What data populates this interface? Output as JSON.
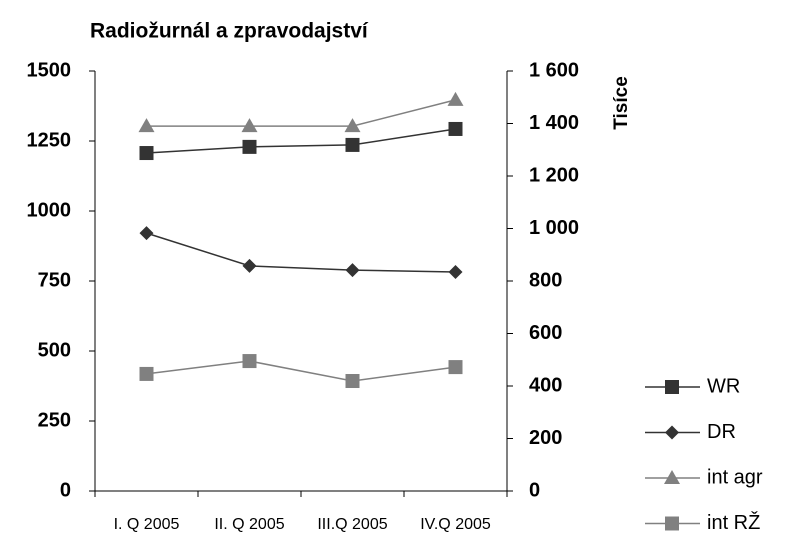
{
  "chart_data": {
    "type": "line",
    "title": "Radiožurnál a zpravodajství",
    "y2label": "Tisíce",
    "categories": [
      "I. Q 2005",
      "II. Q 2005",
      "III.Q 2005",
      "IV.Q 2005"
    ],
    "series": [
      {
        "name": "WR",
        "color": "#333333",
        "marker": "square",
        "values": [
          1207,
          1229,
          1236,
          1293
        ]
      },
      {
        "name": "DR",
        "color": "#333333",
        "marker": "diamond",
        "values": [
          921,
          804,
          789,
          782
        ]
      },
      {
        "name": "int agr",
        "color": "#808080",
        "marker": "triangle",
        "axis": "y2",
        "values": [
          1390,
          1390,
          1390,
          1490
        ]
      },
      {
        "name": "int RŽ",
        "color": "#808080",
        "marker": "square",
        "axis": "y2",
        "values": [
          446,
          495,
          419,
          472
        ]
      }
    ],
    "ylim": [
      0,
      1500
    ],
    "yticks": [
      0,
      250,
      500,
      750,
      1000,
      1250,
      1500
    ],
    "y2lim": [
      0,
      1600
    ],
    "y2ticks": [
      0,
      200,
      400,
      600,
      800,
      {
        "value": 1000,
        "label": "1 000"
      },
      {
        "value": 1200,
        "label": "1 200"
      },
      {
        "value": 1400,
        "label": "1 400"
      },
      {
        "value": 1600,
        "label": "1 600"
      }
    ],
    "legend": "right"
  }
}
